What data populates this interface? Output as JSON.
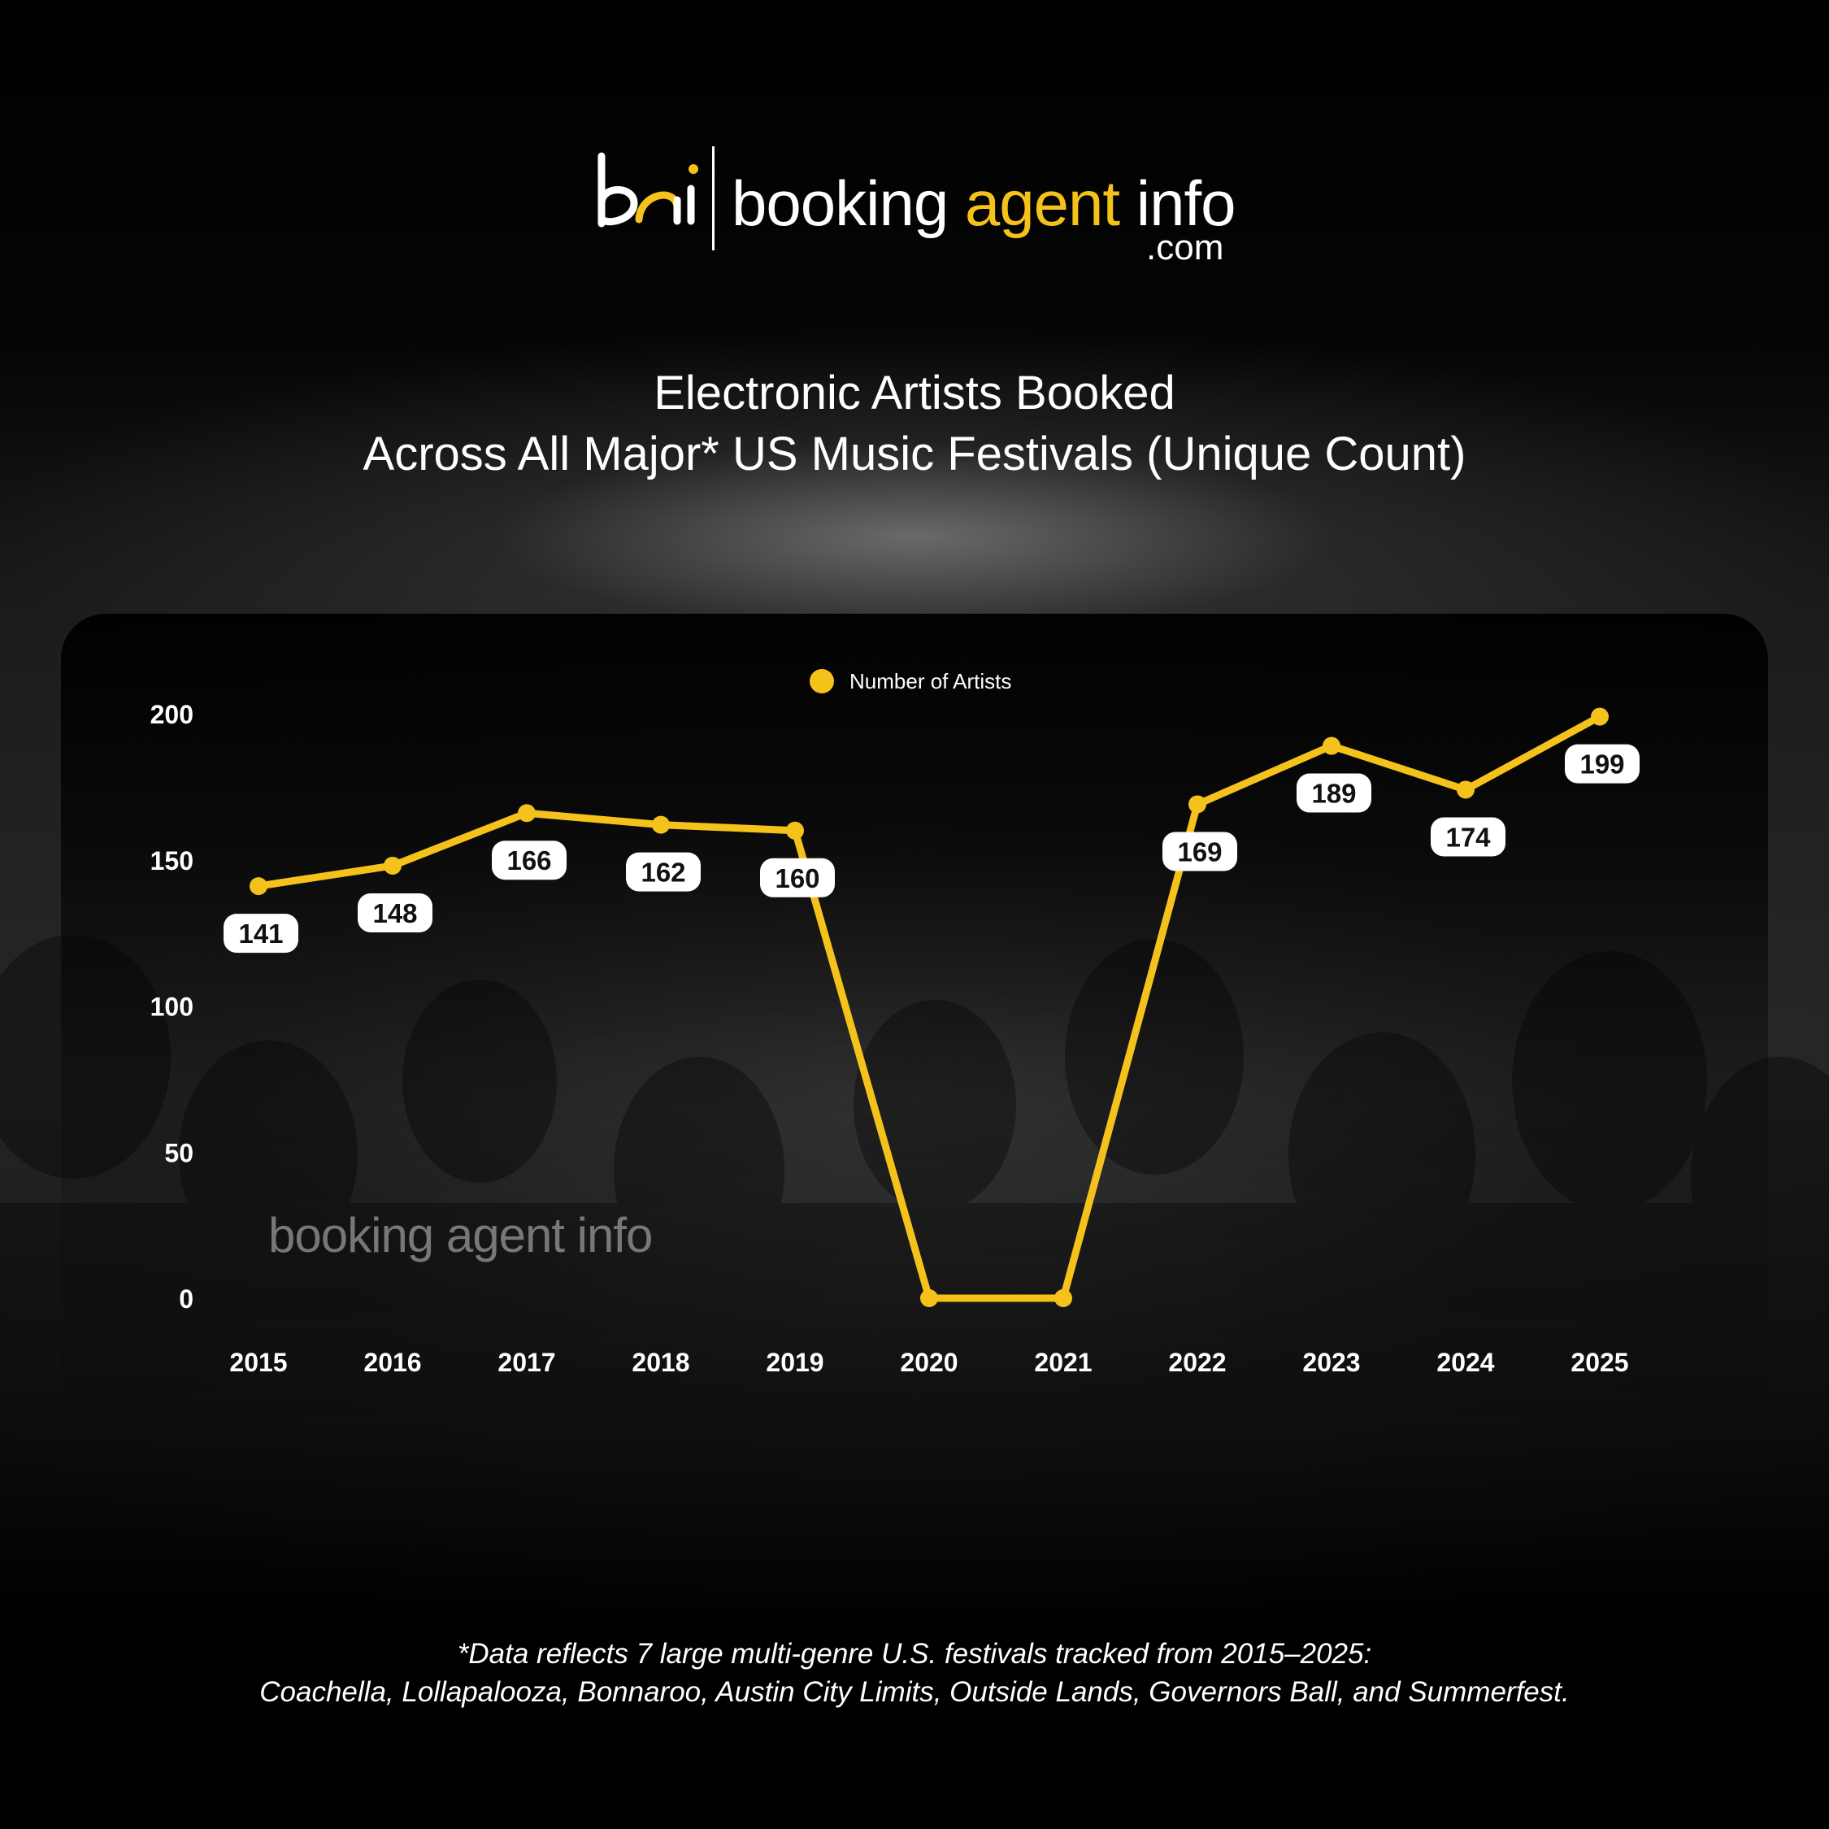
{
  "brand": {
    "mark_text": "bai",
    "name_part1": "booking",
    "name_part2": "agent",
    "name_part3": "info",
    "domain_suffix": ".com",
    "watermark": "booking agent info",
    "colors": {
      "accent": "#f5c21b",
      "text": "#ffffff",
      "background": "#000000"
    }
  },
  "title_line1": "Electronic Artists Booked",
  "title_line2": "Across All Major* US Music Festivals (Unique Count)",
  "chart_data": {
    "type": "line",
    "categories": [
      "2015",
      "2016",
      "2017",
      "2018",
      "2019",
      "2020",
      "2021",
      "2022",
      "2023",
      "2024",
      "2025"
    ],
    "series": [
      {
        "name": "Number of Artists",
        "values": [
          141,
          148,
          166,
          162,
          160,
          0,
          0,
          169,
          189,
          174,
          199
        ],
        "data_labels": [
          "141",
          "148",
          "166",
          "162",
          "160",
          "",
          "",
          "169",
          "189",
          "174",
          "199"
        ],
        "color": "#f5c21b"
      }
    ],
    "yticks": [
      0,
      50,
      100,
      150,
      200
    ],
    "ylim": [
      0,
      200
    ],
    "grid": false,
    "legend": "top-center"
  },
  "footnote_line1": "*Data reflects 7 large multi-genre U.S. festivals tracked from 2015–2025:",
  "footnote_line2": "Coachella, Lollapalooza, Bonnaroo, Austin City Limits, Outside Lands, Governors Ball, and Summerfest."
}
